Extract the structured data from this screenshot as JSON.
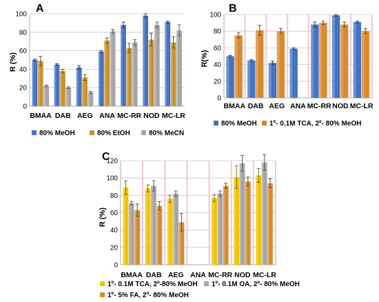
{
  "chart_data": [
    {
      "type": "bar",
      "panel_label": "A",
      "ylabel": "R (%)",
      "ylim": [
        0,
        100
      ],
      "yticks": [
        "0",
        "20",
        "40",
        "60",
        "80",
        "100"
      ],
      "grid": true,
      "legend_position": "bottom",
      "categories": [
        "BMAA",
        "DAB",
        "AEG",
        "ANA",
        "MC-RR",
        "NOD",
        "MC-LR"
      ],
      "series": [
        {
          "name": "80% MeOH",
          "color": "#4472C4",
          "values": [
            50,
            45,
            42,
            59,
            88,
            98,
            91
          ],
          "errors": [
            1,
            1,
            2,
            1,
            3,
            2,
            1
          ]
        },
        {
          "name": "80% EtOH",
          "color": "#C9922E",
          "values": [
            49,
            38,
            31,
            71,
            63,
            72,
            69
          ],
          "errors": [
            5,
            2,
            3,
            3,
            5,
            7,
            6
          ]
        },
        {
          "name": "80% MeCN",
          "color": "#A5A5A5",
          "values": [
            22,
            20,
            15,
            81,
            69,
            88,
            82
          ],
          "errors": [
            1,
            1,
            1,
            2,
            3,
            3,
            6
          ]
        }
      ]
    },
    {
      "type": "bar",
      "panel_label": "B",
      "ylabel": "R(%)",
      "ylim": [
        0,
        100
      ],
      "yticks": [
        "0",
        "20",
        "40",
        "60",
        "80",
        "100"
      ],
      "grid": true,
      "legend_position": "bottom",
      "categories": [
        "BMAA",
        "DAB",
        "AEG",
        "ANA",
        "MC-RR",
        "NOD",
        "MC-LR"
      ],
      "series": [
        {
          "name": "80% MeOH",
          "color": "#4472C4",
          "values": [
            50,
            45,
            42,
            59,
            88,
            99,
            91
          ],
          "errors": [
            1,
            1,
            2,
            1,
            3,
            1,
            1
          ]
        },
        {
          "name": "1º- 0.1M TCA, 2º- 80% MeOH",
          "color": "#D98A2E",
          "values": [
            75,
            81,
            80,
            null,
            90,
            88,
            80
          ],
          "errors": [
            3,
            6,
            3,
            null,
            2,
            3,
            3
          ]
        }
      ]
    },
    {
      "type": "bar",
      "panel_label": "C",
      "ylabel": "R (%)",
      "ylim": [
        0,
        120
      ],
      "yticks": [
        "0",
        "20",
        "40",
        "60",
        "80",
        "100",
        "120"
      ],
      "grid": true,
      "legend_position": "bottom",
      "categories": [
        "BMAA",
        "DAB",
        "AEG",
        "ANA",
        "MC-RR",
        "NOD",
        "MC-LR"
      ],
      "series": [
        {
          "name": "1º- 0.1M TCA, 2º-80% MeOH",
          "color": "#F2C500",
          "values": [
            89,
            88,
            76,
            null,
            77,
            101,
            103
          ],
          "errors": [
            8,
            4,
            4,
            null,
            4,
            13,
            8
          ]
        },
        {
          "name": "1º- 0.1M OA, 2º- 80% MeOH",
          "color": "#A5A5A5",
          "values": [
            71,
            91,
            82,
            null,
            82,
            117,
            118
          ],
          "errors": [
            2,
            6,
            3,
            null,
            3,
            9,
            9
          ]
        },
        {
          "name": "1º- 5% FA, 2º- 80% MeOH",
          "color": "#D98A2E",
          "values": [
            63,
            68,
            49,
            null,
            91,
            96,
            94
          ],
          "errors": [
            7,
            5,
            10,
            null,
            3,
            5,
            5
          ]
        }
      ]
    }
  ]
}
